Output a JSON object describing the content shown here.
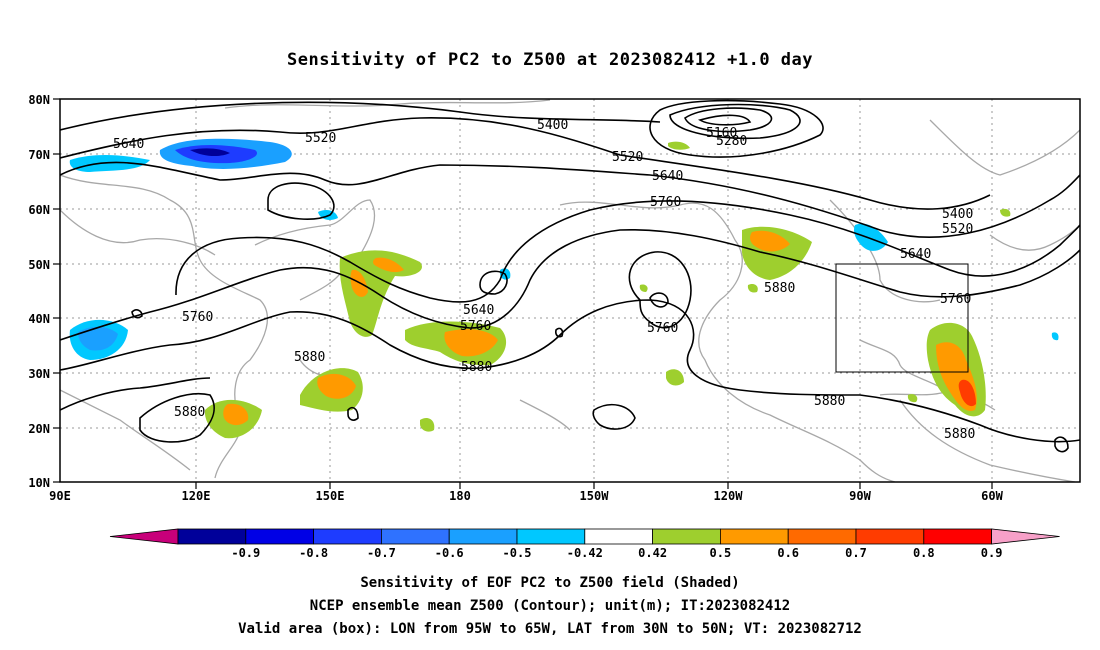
{
  "title": "Sensitivity of PC2 to Z500 at 2023082412 +1.0 day",
  "axes": {
    "lat_labels": [
      "80N",
      "70N",
      "60N",
      "50N",
      "40N",
      "30N",
      "20N",
      "10N"
    ],
    "lon_labels": [
      "90E",
      "120E",
      "150E",
      "180",
      "150W",
      "120W",
      "90W",
      "60W"
    ]
  },
  "contour_labels": [
    "5640",
    "5520",
    "5400",
    "5160",
    "5280",
    "5520",
    "5640",
    "5760",
    "5400",
    "5520",
    "5640",
    "5760",
    "5640",
    "5760",
    "5760",
    "5880",
    "5760",
    "5880",
    "5880",
    "5880",
    "5880"
  ],
  "valid_box": {
    "lon_from": "95W",
    "lon_to": "65W",
    "lat_from": "30N",
    "lat_to": "50N"
  },
  "colorbar": {
    "labels": [
      "-0.9",
      "-0.8",
      "-0.7",
      "-0.6",
      "-0.5",
      "-0.42",
      "0.42",
      "0.5",
      "0.6",
      "0.7",
      "0.8",
      "0.9"
    ],
    "colors": [
      "#00009a",
      "#0000e6",
      "#1e3cff",
      "#2f72ff",
      "#1aa0ff",
      "#00c8ff",
      "#ffffff",
      "#9ecf2e",
      "#ff9a00",
      "#ff6a00",
      "#ff3c00",
      "#ff0000"
    ],
    "low_end_color": "#c8007a",
    "high_end_color": "#f7a0c8"
  },
  "captions": {
    "line1": "Sensitivity of EOF PC2 to Z500 field (Shaded)",
    "line2": "NCEP ensemble mean Z500 (Contour); unit(m); IT:2023082412",
    "line3": "Valid area (box): LON from 95W to 65W, LAT from 30N to 50N; VT: 2023082712"
  }
}
